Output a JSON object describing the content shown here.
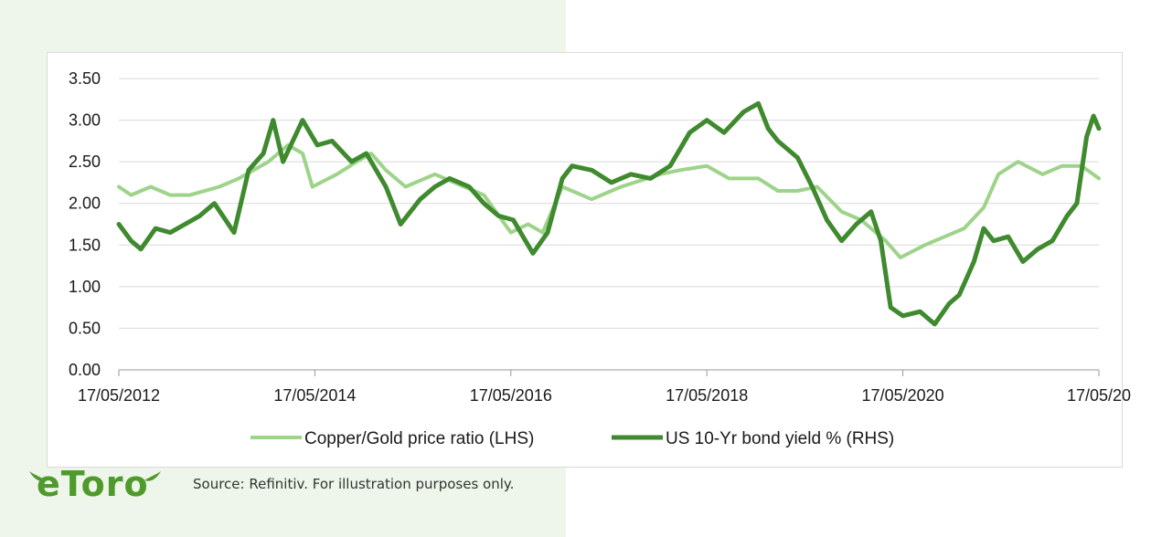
{
  "colors": {
    "background_panel": "#eef5ea",
    "copper_gold_series": "#9ed38a",
    "bond_yield_series": "#3f8a2e",
    "gridline": "#d9d9d9",
    "brand": "#4e9a2a"
  },
  "brand": {
    "logo_text": "eToro"
  },
  "source_note": "Source: Refinitiv. For illustration purposes only.",
  "chart_data": {
    "type": "line",
    "title": "",
    "xlabel": "",
    "ylabel": "",
    "ylim": [
      0,
      3.5
    ],
    "yticks": [
      "3.50",
      "3.00",
      "2.50",
      "2.00",
      "1.50",
      "1.00",
      "0.50",
      "0.00"
    ],
    "xlim": [
      2012.375,
      2022.375
    ],
    "xticks": [
      {
        "x": 2012.375,
        "label": "17/05/2012"
      },
      {
        "x": 2014.375,
        "label": "17/05/2014"
      },
      {
        "x": 2016.375,
        "label": "17/05/2016"
      },
      {
        "x": 2018.375,
        "label": "17/05/2018"
      },
      {
        "x": 2020.375,
        "label": "17/05/2020"
      },
      {
        "x": 2022.375,
        "label": "17/05/20"
      }
    ],
    "grid": true,
    "legend_position": "bottom",
    "series": [
      {
        "name": "Copper/Gold price ratio (LHS)",
        "color": "#9ed38a",
        "points": [
          [
            2012.375,
            2.2
          ],
          [
            2012.5,
            2.1
          ],
          [
            2012.7,
            2.2
          ],
          [
            2012.9,
            2.1
          ],
          [
            2013.1,
            2.1
          ],
          [
            2013.4,
            2.2
          ],
          [
            2013.6,
            2.3
          ],
          [
            2013.9,
            2.5
          ],
          [
            2014.1,
            2.7
          ],
          [
            2014.25,
            2.6
          ],
          [
            2014.35,
            2.2
          ],
          [
            2014.6,
            2.35
          ],
          [
            2014.8,
            2.5
          ],
          [
            2014.95,
            2.6
          ],
          [
            2015.1,
            2.4
          ],
          [
            2015.3,
            2.2
          ],
          [
            2015.6,
            2.35
          ],
          [
            2015.9,
            2.2
          ],
          [
            2016.1,
            2.1
          ],
          [
            2016.375,
            1.65
          ],
          [
            2016.55,
            1.75
          ],
          [
            2016.7,
            1.65
          ],
          [
            2016.9,
            2.2
          ],
          [
            2017.2,
            2.05
          ],
          [
            2017.5,
            2.2
          ],
          [
            2017.9,
            2.35
          ],
          [
            2018.1,
            2.4
          ],
          [
            2018.375,
            2.45
          ],
          [
            2018.6,
            2.3
          ],
          [
            2018.9,
            2.3
          ],
          [
            2019.1,
            2.15
          ],
          [
            2019.3,
            2.15
          ],
          [
            2019.5,
            2.2
          ],
          [
            2019.75,
            1.9
          ],
          [
            2019.95,
            1.8
          ],
          [
            2020.1,
            1.65
          ],
          [
            2020.2,
            1.55
          ],
          [
            2020.35,
            1.35
          ],
          [
            2020.6,
            1.5
          ],
          [
            2020.8,
            1.6
          ],
          [
            2021.0,
            1.7
          ],
          [
            2021.2,
            1.95
          ],
          [
            2021.35,
            2.35
          ],
          [
            2021.55,
            2.5
          ],
          [
            2021.8,
            2.35
          ],
          [
            2022.0,
            2.45
          ],
          [
            2022.2,
            2.45
          ],
          [
            2022.375,
            2.3
          ]
        ]
      },
      {
        "name": "US 10-Yr bond yield % (RHS)",
        "color": "#3f8a2e",
        "points": [
          [
            2012.375,
            1.75
          ],
          [
            2012.5,
            1.55
          ],
          [
            2012.6,
            1.45
          ],
          [
            2012.75,
            1.7
          ],
          [
            2012.9,
            1.65
          ],
          [
            2013.05,
            1.75
          ],
          [
            2013.2,
            1.85
          ],
          [
            2013.35,
            2.0
          ],
          [
            2013.55,
            1.65
          ],
          [
            2013.7,
            2.4
          ],
          [
            2013.85,
            2.6
          ],
          [
            2013.95,
            3.0
          ],
          [
            2014.05,
            2.5
          ],
          [
            2014.25,
            3.0
          ],
          [
            2014.4,
            2.7
          ],
          [
            2014.55,
            2.75
          ],
          [
            2014.75,
            2.5
          ],
          [
            2014.9,
            2.6
          ],
          [
            2015.1,
            2.2
          ],
          [
            2015.25,
            1.75
          ],
          [
            2015.45,
            2.05
          ],
          [
            2015.6,
            2.2
          ],
          [
            2015.75,
            2.3
          ],
          [
            2015.95,
            2.2
          ],
          [
            2016.1,
            2.0
          ],
          [
            2016.25,
            1.85
          ],
          [
            2016.4,
            1.8
          ],
          [
            2016.5,
            1.6
          ],
          [
            2016.6,
            1.4
          ],
          [
            2016.75,
            1.65
          ],
          [
            2016.9,
            2.3
          ],
          [
            2017.0,
            2.45
          ],
          [
            2017.2,
            2.4
          ],
          [
            2017.4,
            2.25
          ],
          [
            2017.6,
            2.35
          ],
          [
            2017.8,
            2.3
          ],
          [
            2018.0,
            2.45
          ],
          [
            2018.2,
            2.85
          ],
          [
            2018.375,
            3.0
          ],
          [
            2018.55,
            2.85
          ],
          [
            2018.75,
            3.1
          ],
          [
            2018.9,
            3.2
          ],
          [
            2019.0,
            2.9
          ],
          [
            2019.1,
            2.75
          ],
          [
            2019.3,
            2.55
          ],
          [
            2019.45,
            2.2
          ],
          [
            2019.6,
            1.8
          ],
          [
            2019.75,
            1.55
          ],
          [
            2019.9,
            1.75
          ],
          [
            2020.05,
            1.9
          ],
          [
            2020.15,
            1.55
          ],
          [
            2020.25,
            0.75
          ],
          [
            2020.375,
            0.65
          ],
          [
            2020.55,
            0.7
          ],
          [
            2020.7,
            0.55
          ],
          [
            2020.85,
            0.8
          ],
          [
            2020.95,
            0.9
          ],
          [
            2021.1,
            1.3
          ],
          [
            2021.2,
            1.7
          ],
          [
            2021.3,
            1.55
          ],
          [
            2021.45,
            1.6
          ],
          [
            2021.6,
            1.3
          ],
          [
            2021.75,
            1.45
          ],
          [
            2021.9,
            1.55
          ],
          [
            2022.05,
            1.85
          ],
          [
            2022.15,
            2.0
          ],
          [
            2022.25,
            2.8
          ],
          [
            2022.32,
            3.05
          ],
          [
            2022.375,
            2.9
          ]
        ]
      }
    ]
  }
}
